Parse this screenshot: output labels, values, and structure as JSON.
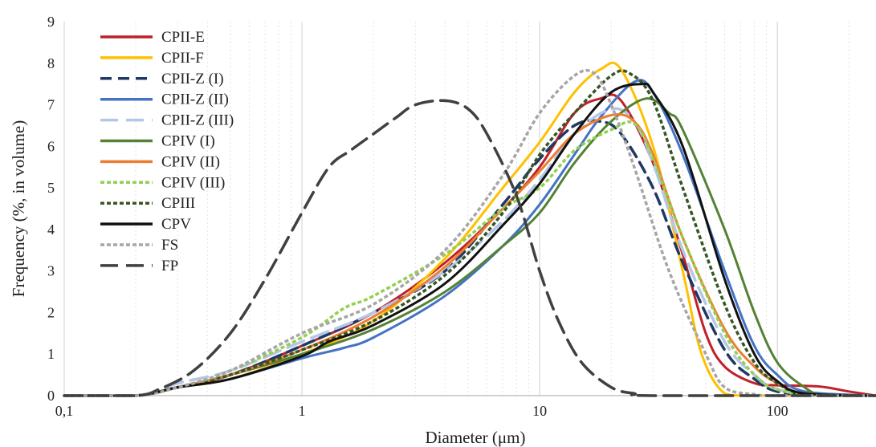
{
  "chart_data": {
    "type": "line",
    "xlabel": "Diameter (μm)",
    "ylabel": "Frequency (%, in volume)",
    "x_scale": "log",
    "xlim": [
      0.1,
      260
    ],
    "ylim": [
      0,
      9
    ],
    "x_ticks": [
      {
        "value": 0.1,
        "label": "0,1"
      },
      {
        "value": 1,
        "label": "1"
      },
      {
        "value": 10,
        "label": "10"
      },
      {
        "value": 100,
        "label": "100"
      }
    ],
    "y_ticks": [
      {
        "value": 0,
        "label": "0"
      },
      {
        "value": 1,
        "label": "1"
      },
      {
        "value": 2,
        "label": "2"
      },
      {
        "value": 3,
        "label": "3"
      },
      {
        "value": 4,
        "label": "4"
      },
      {
        "value": 5,
        "label": "5"
      },
      {
        "value": 6,
        "label": "6"
      },
      {
        "value": 7,
        "label": "7"
      },
      {
        "value": 8,
        "label": "8"
      },
      {
        "value": 9,
        "label": "9"
      }
    ],
    "grid": "vertical-minor-log",
    "legend_position": "top-left",
    "series": [
      {
        "name": "CPII-E",
        "color": "#C0202A",
        "style": "solid",
        "points": [
          [
            0.1,
            0
          ],
          [
            0.2,
            0
          ],
          [
            0.3,
            0.2
          ],
          [
            0.5,
            0.5
          ],
          [
            1,
            1.2
          ],
          [
            2,
            2.0
          ],
          [
            4,
            3.2
          ],
          [
            7,
            4.5
          ],
          [
            10,
            5.5
          ],
          [
            14,
            6.8
          ],
          [
            18,
            7.15
          ],
          [
            22,
            7.1
          ],
          [
            30,
            5.6
          ],
          [
            40,
            3.4
          ],
          [
            50,
            1.5
          ],
          [
            60,
            0.7
          ],
          [
            80,
            0.3
          ],
          [
            100,
            0.25
          ],
          [
            150,
            0.22
          ],
          [
            200,
            0.1
          ],
          [
            260,
            0
          ]
        ]
      },
      {
        "name": "CPII-F",
        "color": "#FFC000",
        "style": "solid",
        "points": [
          [
            0.1,
            0
          ],
          [
            0.2,
            0
          ],
          [
            0.3,
            0.2
          ],
          [
            0.5,
            0.4
          ],
          [
            1,
            1.0
          ],
          [
            2,
            1.8
          ],
          [
            4,
            3.3
          ],
          [
            7,
            5.0
          ],
          [
            10,
            6.1
          ],
          [
            14,
            7.3
          ],
          [
            18,
            7.85
          ],
          [
            22,
            7.85
          ],
          [
            30,
            6.0
          ],
          [
            40,
            3.0
          ],
          [
            48,
            1.0
          ],
          [
            60,
            0.05
          ],
          [
            80,
            0
          ],
          [
            260,
            0
          ]
        ]
      },
      {
        "name": "CPII-Z (I)",
        "color": "#1F3864",
        "style": "dash",
        "points": [
          [
            0.1,
            0
          ],
          [
            0.2,
            0
          ],
          [
            0.3,
            0.2
          ],
          [
            0.5,
            0.5
          ],
          [
            1,
            1.2
          ],
          [
            2,
            2.0
          ],
          [
            4,
            3.0
          ],
          [
            7,
            4.6
          ],
          [
            10,
            5.7
          ],
          [
            14,
            6.5
          ],
          [
            18,
            6.6
          ],
          [
            22,
            6.3
          ],
          [
            30,
            5.0
          ],
          [
            40,
            3.2
          ],
          [
            60,
            1.1
          ],
          [
            80,
            0.4
          ],
          [
            100,
            0.1
          ],
          [
            150,
            0
          ],
          [
            260,
            0
          ]
        ]
      },
      {
        "name": "CPII-Z (II)",
        "color": "#4472C4",
        "style": "solid",
        "points": [
          [
            0.1,
            0
          ],
          [
            0.2,
            0
          ],
          [
            0.3,
            0.2
          ],
          [
            0.5,
            0.4
          ],
          [
            1,
            0.9
          ],
          [
            1.5,
            1.15
          ],
          [
            2,
            1.4
          ],
          [
            4,
            2.4
          ],
          [
            7,
            3.6
          ],
          [
            10,
            4.6
          ],
          [
            14,
            5.8
          ],
          [
            18,
            6.7
          ],
          [
            25,
            7.55
          ],
          [
            30,
            7.3
          ],
          [
            40,
            5.8
          ],
          [
            60,
            3.0
          ],
          [
            80,
            1.2
          ],
          [
            100,
            0.5
          ],
          [
            130,
            0.1
          ],
          [
            260,
            0
          ]
        ]
      },
      {
        "name": "CPII-Z (III)",
        "color": "#B4C7E7",
        "style": "longdash",
        "points": [
          [
            0.1,
            0
          ],
          [
            0.2,
            0
          ],
          [
            0.3,
            0.3
          ],
          [
            0.5,
            0.6
          ],
          [
            1,
            1.3
          ],
          [
            2,
            2.0
          ],
          [
            4,
            3.0
          ],
          [
            7,
            4.2
          ],
          [
            10,
            5.2
          ],
          [
            14,
            6.3
          ],
          [
            20,
            6.9
          ],
          [
            25,
            6.6
          ],
          [
            30,
            5.6
          ],
          [
            40,
            3.5
          ],
          [
            60,
            1.3
          ],
          [
            80,
            0.5
          ],
          [
            100,
            0.15
          ],
          [
            150,
            0
          ],
          [
            260,
            0
          ]
        ]
      },
      {
        "name": "CPIV (I)",
        "color": "#548235",
        "style": "solid",
        "points": [
          [
            0.1,
            0
          ],
          [
            0.2,
            0
          ],
          [
            0.3,
            0.2
          ],
          [
            0.5,
            0.5
          ],
          [
            1,
            1.0
          ],
          [
            2,
            1.6
          ],
          [
            4,
            2.5
          ],
          [
            7,
            3.6
          ],
          [
            10,
            4.4
          ],
          [
            14,
            5.6
          ],
          [
            20,
            6.6
          ],
          [
            28,
            7.15
          ],
          [
            35,
            6.8
          ],
          [
            40,
            6.4
          ],
          [
            60,
            4.0
          ],
          [
            80,
            2.0
          ],
          [
            100,
            0.8
          ],
          [
            130,
            0.2
          ],
          [
            160,
            0
          ],
          [
            260,
            0
          ]
        ]
      },
      {
        "name": "CPIV (II)",
        "color": "#ED7D31",
        "style": "solid",
        "points": [
          [
            0.1,
            0
          ],
          [
            0.2,
            0
          ],
          [
            0.3,
            0.2
          ],
          [
            0.5,
            0.5
          ],
          [
            1,
            1.1
          ],
          [
            2,
            1.9
          ],
          [
            4,
            3.1
          ],
          [
            7,
            4.5
          ],
          [
            10,
            5.4
          ],
          [
            14,
            6.3
          ],
          [
            20,
            6.75
          ],
          [
            25,
            6.6
          ],
          [
            30,
            5.8
          ],
          [
            40,
            3.8
          ],
          [
            60,
            1.6
          ],
          [
            80,
            0.7
          ],
          [
            100,
            0.3
          ],
          [
            130,
            0.05
          ],
          [
            260,
            0
          ]
        ]
      },
      {
        "name": "CPIV (III)",
        "color": "#92D050",
        "style": "dot",
        "points": [
          [
            0.1,
            0
          ],
          [
            0.2,
            0
          ],
          [
            0.3,
            0.2
          ],
          [
            0.5,
            0.6
          ],
          [
            1,
            1.4
          ],
          [
            1.5,
            2.1
          ],
          [
            2,
            2.4
          ],
          [
            4,
            3.4
          ],
          [
            7,
            4.5
          ],
          [
            10,
            5.0
          ],
          [
            14,
            5.9
          ],
          [
            20,
            6.4
          ],
          [
            25,
            6.55
          ],
          [
            30,
            5.7
          ],
          [
            40,
            3.8
          ],
          [
            60,
            1.5
          ],
          [
            80,
            0.5
          ],
          [
            100,
            0.15
          ],
          [
            150,
            0
          ],
          [
            260,
            0
          ]
        ]
      },
      {
        "name": "CPIII",
        "color": "#375623",
        "style": "dot",
        "points": [
          [
            0.1,
            0
          ],
          [
            0.2,
            0
          ],
          [
            0.3,
            0.2
          ],
          [
            0.5,
            0.5
          ],
          [
            1,
            1.1
          ],
          [
            2,
            1.8
          ],
          [
            4,
            2.9
          ],
          [
            7,
            4.4
          ],
          [
            10,
            5.8
          ],
          [
            14,
            6.8
          ],
          [
            20,
            7.7
          ],
          [
            24,
            7.75
          ],
          [
            30,
            7.1
          ],
          [
            40,
            5.0
          ],
          [
            60,
            2.2
          ],
          [
            80,
            0.8
          ],
          [
            100,
            0.3
          ],
          [
            130,
            0.05
          ],
          [
            260,
            0
          ]
        ]
      },
      {
        "name": "CPV",
        "color": "#111111",
        "style": "solid",
        "points": [
          [
            0.1,
            0
          ],
          [
            0.2,
            0
          ],
          [
            0.3,
            0.2
          ],
          [
            0.5,
            0.4
          ],
          [
            1,
            0.95
          ],
          [
            1.3,
            1.3
          ],
          [
            2,
            1.7
          ],
          [
            4,
            2.7
          ],
          [
            7,
            4.1
          ],
          [
            10,
            5.1
          ],
          [
            14,
            6.3
          ],
          [
            20,
            7.3
          ],
          [
            27,
            7.5
          ],
          [
            30,
            7.3
          ],
          [
            40,
            6.0
          ],
          [
            60,
            2.8
          ],
          [
            80,
            1.0
          ],
          [
            100,
            0.35
          ],
          [
            130,
            0.05
          ],
          [
            260,
            0
          ]
        ]
      },
      {
        "name": "FS",
        "color": "#A6A6A6",
        "style": "dot",
        "points": [
          [
            0.1,
            0
          ],
          [
            0.2,
            0
          ],
          [
            0.3,
            0.2
          ],
          [
            0.5,
            0.6
          ],
          [
            1,
            1.5
          ],
          [
            2,
            2.2
          ],
          [
            4,
            3.5
          ],
          [
            7,
            5.3
          ],
          [
            10,
            6.8
          ],
          [
            14,
            7.7
          ],
          [
            17,
            7.75
          ],
          [
            20,
            7.0
          ],
          [
            25,
            5.5
          ],
          [
            35,
            3.0
          ],
          [
            50,
            1.0
          ],
          [
            60,
            0.2
          ],
          [
            80,
            0.03
          ],
          [
            100,
            0
          ],
          [
            260,
            0
          ]
        ]
      },
      {
        "name": "FP",
        "color": "#404040",
        "style": "longdash",
        "points": [
          [
            0.1,
            0
          ],
          [
            0.2,
            0
          ],
          [
            0.25,
            0.15
          ],
          [
            0.35,
            0.6
          ],
          [
            0.5,
            1.5
          ],
          [
            0.7,
            2.8
          ],
          [
            1,
            4.4
          ],
          [
            1.3,
            5.5
          ],
          [
            1.6,
            5.9
          ],
          [
            2,
            6.3
          ],
          [
            2.5,
            6.7
          ],
          [
            3,
            7.0
          ],
          [
            4,
            7.1
          ],
          [
            5,
            6.9
          ],
          [
            6,
            6.3
          ],
          [
            8,
            4.8
          ],
          [
            10,
            3.0
          ],
          [
            12,
            1.8
          ],
          [
            15,
            0.8
          ],
          [
            20,
            0.2
          ],
          [
            25,
            0.05
          ],
          [
            30,
            0
          ],
          [
            260,
            0
          ]
        ]
      }
    ]
  }
}
